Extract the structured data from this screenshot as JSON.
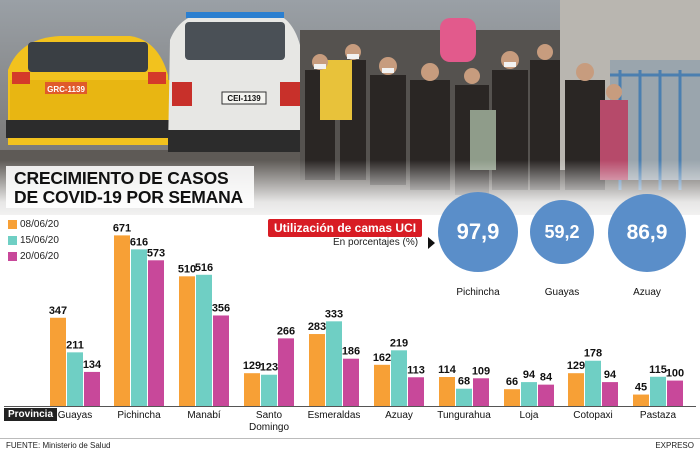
{
  "title": [
    "CRECIMIENTO DE CASOS",
    "DE COVID-19 POR SEMANA"
  ],
  "legend": [
    {
      "label": "08/06/20",
      "color": "#f7a036"
    },
    {
      "label": "15/06/20",
      "color": "#6fcfc4"
    },
    {
      "label": "20/06/20",
      "color": "#c8489a"
    }
  ],
  "axis_tag": "Provincia",
  "chart_data": {
    "type": "bar",
    "categories": [
      "Guayas",
      "Pichincha",
      "Manabí",
      "Santo Domingo",
      "Esmeraldas",
      "Azuay",
      "Tungurahua",
      "Loja",
      "Cotopaxi",
      "Pastaza"
    ],
    "series": [
      {
        "name": "08/06/20",
        "values": [
          347,
          671,
          510,
          129,
          283,
          162,
          114,
          66,
          129,
          45
        ]
      },
      {
        "name": "15/06/20",
        "values": [
          211,
          616,
          516,
          123,
          333,
          219,
          68,
          94,
          178,
          115
        ]
      },
      {
        "name": "20/06/20",
        "values": [
          134,
          573,
          356,
          266,
          186,
          113,
          109,
          84,
          94,
          100
        ]
      }
    ],
    "colors": [
      "#f7a036",
      "#6fcfc4",
      "#c8489a"
    ],
    "ylim": [
      0,
      700
    ]
  },
  "uci": {
    "title": "Utilización de camas UCI",
    "subtitle": "En porcentajes (%)",
    "items": [
      {
        "label": "Pichincha",
        "value": "97,9"
      },
      {
        "label": "Guayas",
        "value": "59,2"
      },
      {
        "label": "Azuay",
        "value": "86,9"
      }
    ],
    "color": "#5a8ec9"
  },
  "photo_plates": [
    "GRC-1139",
    "CEI-1139"
  ],
  "source": "FUENTE: Ministerio de Salud",
  "brand": "EXPRESO"
}
